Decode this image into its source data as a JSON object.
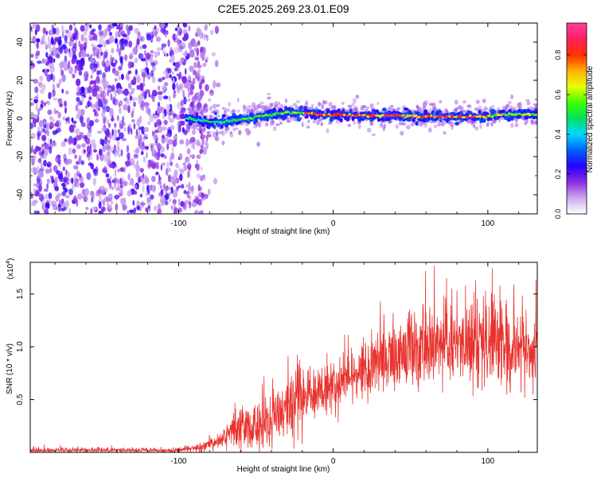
{
  "figure": {
    "title": "C2E5.2025.269.23.01.E09"
  },
  "chart_data": [
    {
      "type": "heatmap",
      "name": "spectrogram",
      "xlabel": "Height of straight line (km)",
      "ylabel": "Frequency (Hz)",
      "xlim": [
        -196,
        132
      ],
      "ylim": [
        -50,
        50
      ],
      "x_ticks": [
        -100,
        0,
        100
      ],
      "x_tick_labels": [
        "-100",
        "0",
        "100"
      ],
      "y_ticks": [
        -40,
        -20,
        0,
        20,
        40
      ],
      "y_tick_labels": [
        "-40",
        "-20",
        "0",
        "20",
        "40"
      ],
      "noise_region_x": [
        -196,
        -82
      ],
      "signal_onset_x": -95,
      "ridge": [
        {
          "x": -95,
          "f": 0
        },
        {
          "x": -85,
          "f": -1
        },
        {
          "x": -75,
          "f": -2
        },
        {
          "x": -65,
          "f": -1
        },
        {
          "x": -55,
          "f": 0
        },
        {
          "x": -48,
          "f": 1
        },
        {
          "x": -40,
          "f": 2
        },
        {
          "x": -30,
          "f": 3
        },
        {
          "x": -20,
          "f": 3
        },
        {
          "x": -10,
          "f": 2
        },
        {
          "x": 0,
          "f": 2
        },
        {
          "x": 20,
          "f": 1.5
        },
        {
          "x": 40,
          "f": 1.5
        },
        {
          "x": 60,
          "f": 1
        },
        {
          "x": 80,
          "f": 1
        },
        {
          "x": 100,
          "f": 1
        },
        {
          "x": 110,
          "f": 2
        },
        {
          "x": 120,
          "f": 2
        },
        {
          "x": 132,
          "f": 2
        }
      ],
      "colorbar": {
        "label": "Normalized spectral amplitude",
        "range": [
          0,
          0.96
        ],
        "ticks": [
          0.0,
          0.2,
          0.4,
          0.6,
          0.8
        ],
        "tick_labels": [
          "0.0",
          "0.2",
          "0.4",
          "0.6",
          "0.8"
        ],
        "colors": [
          "#ffffff",
          "#c9a9f0",
          "#8a2be2",
          "#2a00ff",
          "#0060ff",
          "#00d8ff",
          "#00e060",
          "#40ff00",
          "#e8ff00",
          "#ffb000",
          "#ff3000",
          "#ff2060",
          "#ff40a0"
        ]
      }
    },
    {
      "type": "line",
      "name": "snr",
      "xlabel": "Height of straight line (km)",
      "ylabel": "SNR (10 * v/v)",
      "multiplier_label": "(x10",
      "multiplier_exp": "4",
      "multiplier_close": ")",
      "xlim": [
        -196,
        132
      ],
      "ylim": [
        0,
        1.8
      ],
      "x_ticks": [
        -100,
        0,
        100
      ],
      "x_tick_labels": [
        "-100",
        "0",
        "100"
      ],
      "y_ticks": [
        0.5,
        1.0,
        1.5
      ],
      "y_tick_labels": [
        "0.5",
        "1.0",
        "1.5"
      ],
      "color": "#e8332e",
      "envelope": [
        {
          "x": -196,
          "mean": 0.02,
          "amp": 0.02
        },
        {
          "x": -100,
          "mean": 0.02,
          "amp": 0.02
        },
        {
          "x": -85,
          "mean": 0.05,
          "amp": 0.04
        },
        {
          "x": -75,
          "mean": 0.1,
          "amp": 0.08
        },
        {
          "x": -65,
          "mean": 0.18,
          "amp": 0.14
        },
        {
          "x": -58,
          "mean": 0.25,
          "amp": 0.2
        },
        {
          "x": -50,
          "mean": 0.22,
          "amp": 0.18
        },
        {
          "x": -40,
          "mean": 0.32,
          "amp": 0.26
        },
        {
          "x": -30,
          "mean": 0.4,
          "amp": 0.3
        },
        {
          "x": -20,
          "mean": 0.5,
          "amp": 0.3
        },
        {
          "x": -10,
          "mean": 0.55,
          "amp": 0.25
        },
        {
          "x": 0,
          "mean": 0.62,
          "amp": 0.2
        },
        {
          "x": 15,
          "mean": 0.75,
          "amp": 0.25
        },
        {
          "x": 30,
          "mean": 0.85,
          "amp": 0.3
        },
        {
          "x": 45,
          "mean": 0.95,
          "amp": 0.35
        },
        {
          "x": 60,
          "mean": 1.0,
          "amp": 0.38
        },
        {
          "x": 80,
          "mean": 1.0,
          "amp": 0.35
        },
        {
          "x": 100,
          "mean": 1.05,
          "amp": 0.38
        },
        {
          "x": 115,
          "mean": 0.98,
          "amp": 0.38
        },
        {
          "x": 132,
          "mean": 0.95,
          "amp": 0.35
        }
      ]
    }
  ]
}
